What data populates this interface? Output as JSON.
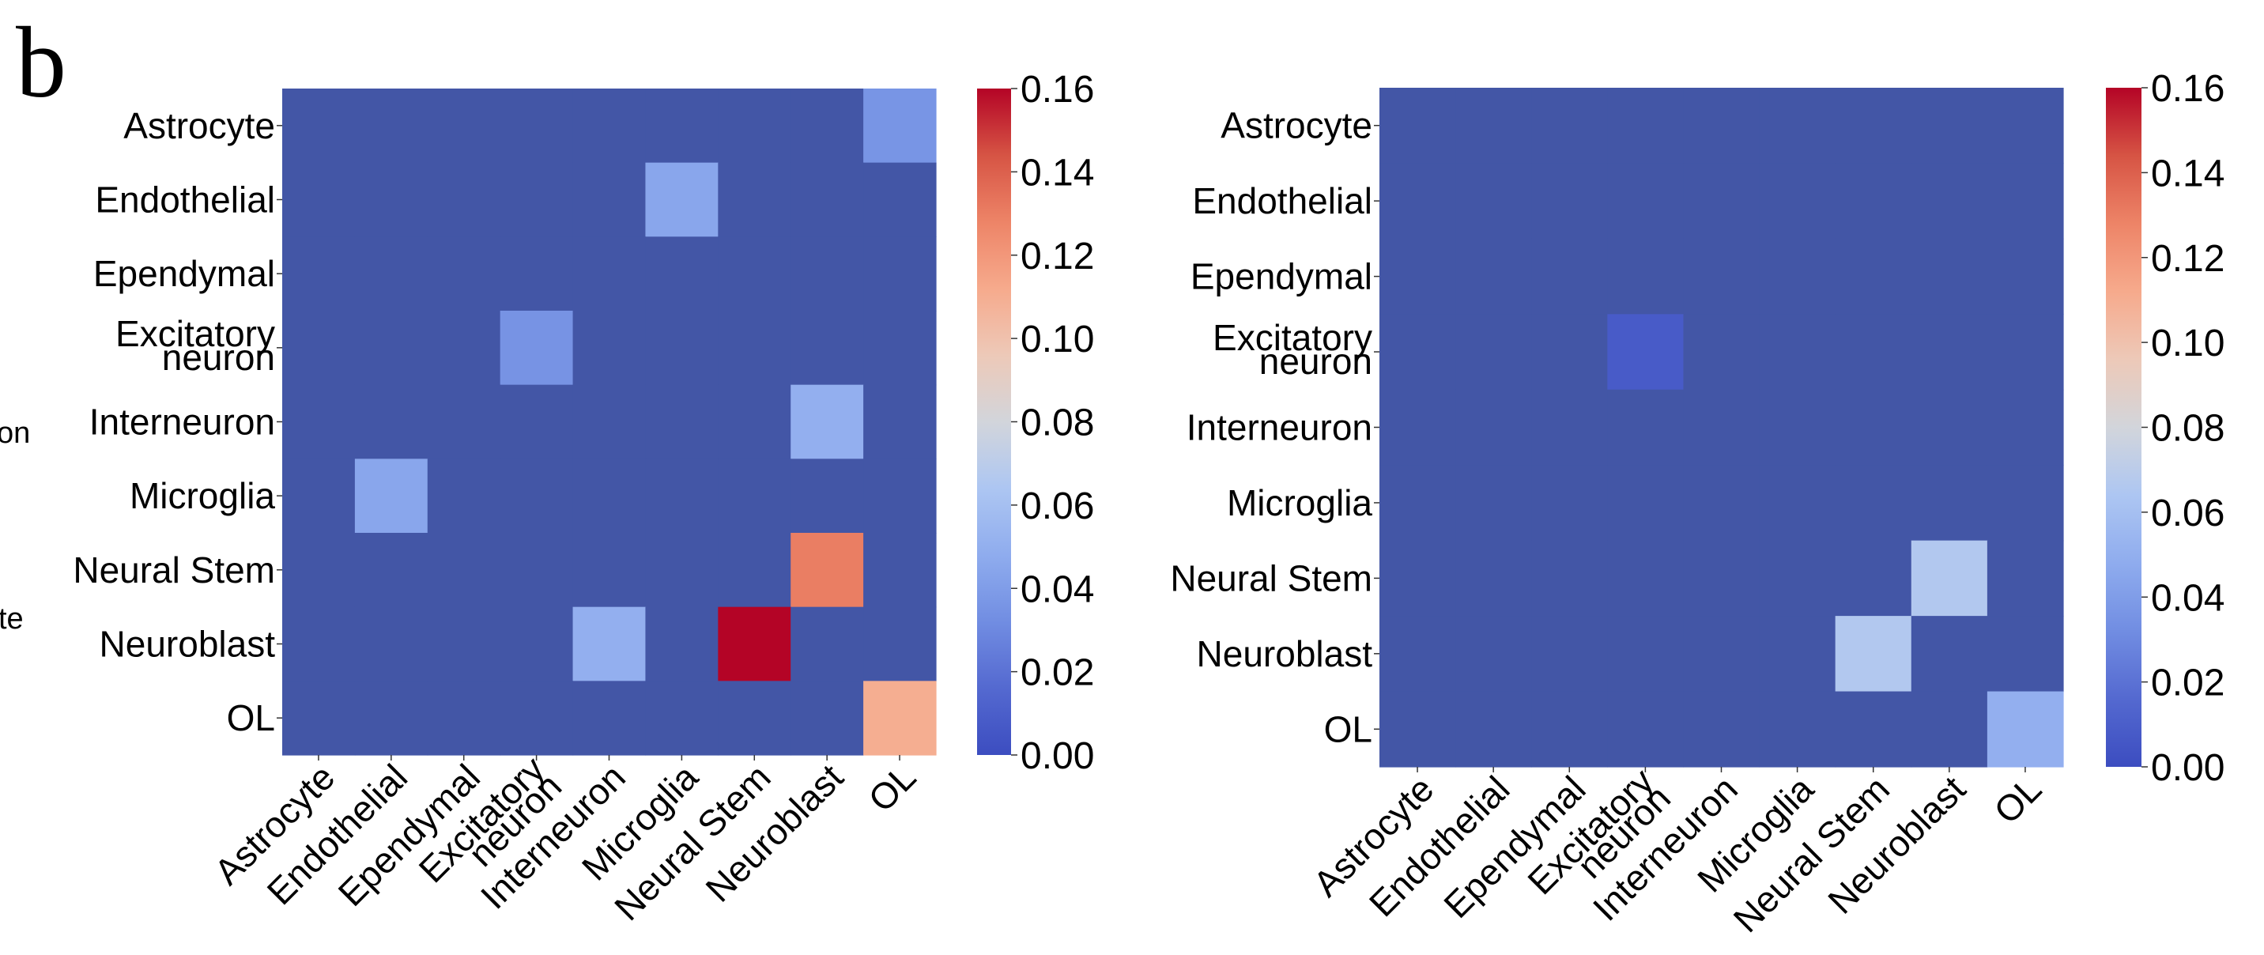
{
  "panel_label": "b",
  "left_fragments": [
    "on",
    "te"
  ],
  "chart_data": [
    {
      "type": "heatmap",
      "title": "",
      "xlabel": "",
      "ylabel": "",
      "rows": [
        "Astrocyte",
        "Endothelial",
        "Ependymal",
        "Excitatory\nneuron",
        "Interneuron",
        "Microglia",
        "Neural Stem",
        "Neuroblast",
        "OL"
      ],
      "columns": [
        "Astrocyte",
        "Endothelial",
        "Ependymal",
        "Excitatory\nneuron",
        "Interneuron",
        "Microglia",
        "Neural Stem",
        "Neuroblast",
        "OL"
      ],
      "values": [
        [
          0,
          0,
          0,
          0,
          0,
          0,
          0,
          0,
          0.036
        ],
        [
          0,
          0,
          0,
          0,
          0,
          0.045,
          0,
          0,
          0
        ],
        [
          0,
          0,
          0,
          0,
          0,
          0,
          0,
          0,
          0
        ],
        [
          0,
          0,
          0,
          0.035,
          0,
          0,
          0,
          0,
          0
        ],
        [
          0,
          0,
          0,
          0,
          0,
          0,
          0,
          0.05,
          0
        ],
        [
          0,
          0.045,
          0,
          0,
          0,
          0,
          0,
          0,
          0
        ],
        [
          0,
          0,
          0,
          0,
          0,
          0,
          0,
          0.13,
          0
        ],
        [
          0,
          0,
          0,
          0,
          0.05,
          0,
          0.16,
          0,
          0
        ],
        [
          0,
          0,
          0,
          0,
          0,
          0,
          0,
          0,
          0.11
        ]
      ],
      "colormap": "coolwarm",
      "colorbar": {
        "range": [
          0,
          0.16
        ],
        "ticks": [
          "0.00",
          "0.02",
          "0.04",
          "0.06",
          "0.08",
          "0.10",
          "0.12",
          "0.14",
          "0.16"
        ]
      }
    },
    {
      "type": "heatmap",
      "title": "",
      "xlabel": "",
      "ylabel": "",
      "rows": [
        "Astrocyte",
        "Endothelial",
        "Ependymal",
        "Excitatory\nneuron",
        "Interneuron",
        "Microglia",
        "Neural Stem",
        "Neuroblast",
        "OL"
      ],
      "columns": [
        "Astrocyte",
        "Endothelial",
        "Ependymal",
        "Excitatory\nneuron",
        "Interneuron",
        "Microglia",
        "Neural Stem",
        "Neuroblast",
        "OL"
      ],
      "values": [
        [
          0,
          0,
          0,
          0,
          0,
          0,
          0,
          0,
          0
        ],
        [
          0,
          0,
          0,
          0,
          0,
          0,
          0,
          0,
          0
        ],
        [
          0,
          0,
          0,
          0,
          0,
          0,
          0,
          0,
          0
        ],
        [
          0,
          0,
          0,
          0.008,
          0,
          0,
          0,
          0,
          0
        ],
        [
          0,
          0,
          0,
          0,
          0,
          0,
          0,
          0,
          0
        ],
        [
          0,
          0,
          0,
          0,
          0,
          0,
          0,
          0,
          0
        ],
        [
          0,
          0,
          0,
          0,
          0,
          0,
          0,
          0.066,
          0
        ],
        [
          0,
          0,
          0,
          0,
          0,
          0,
          0.066,
          0,
          0
        ],
        [
          0,
          0,
          0,
          0,
          0,
          0,
          0,
          0,
          0.05
        ]
      ],
      "colormap": "coolwarm",
      "colorbar": {
        "range": [
          0,
          0.16
        ],
        "ticks": [
          "0.00",
          "0.02",
          "0.04",
          "0.06",
          "0.08",
          "0.10",
          "0.12",
          "0.14",
          "0.16"
        ]
      }
    }
  ]
}
